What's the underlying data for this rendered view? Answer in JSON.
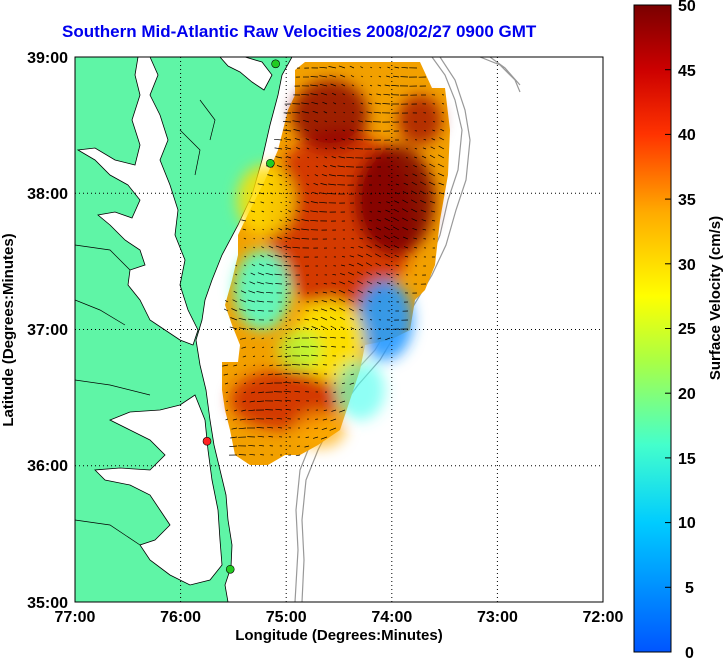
{
  "title": "Southern Mid-Atlantic Raw Velocities 2008/02/27 0900 GMT",
  "x_axis": {
    "label": "Longitude (Degrees:Minutes)",
    "ticks": [
      "77:00",
      "76:00",
      "75:00",
      "74:00",
      "73:00",
      "72:00"
    ]
  },
  "y_axis": {
    "label": "Latitude (Degrees:Minutes)",
    "ticks": [
      "39:00",
      "38:00",
      "37:00",
      "36:00",
      "35:00"
    ]
  },
  "colorbar": {
    "label": "Surface Velocity (cm/s)",
    "min": 0,
    "max": 50,
    "ticks": [
      "50",
      "45",
      "40",
      "35",
      "30",
      "25",
      "20",
      "15",
      "10",
      "5",
      "0"
    ]
  },
  "colors": {
    "title": "#0000ee",
    "land": "#5ff5a6",
    "station_active": "#22cc22",
    "station_inactive": "#ff2222",
    "bathymetry": "#999999"
  },
  "stations": [
    {
      "status": "active",
      "lon": -75.1,
      "lat": 38.95
    },
    {
      "status": "active",
      "lon": -75.15,
      "lat": 38.22
    },
    {
      "status": "inactive",
      "lon": -75.75,
      "lat": 36.18
    },
    {
      "status": "active",
      "lon": -75.53,
      "lat": 35.24
    }
  ]
}
